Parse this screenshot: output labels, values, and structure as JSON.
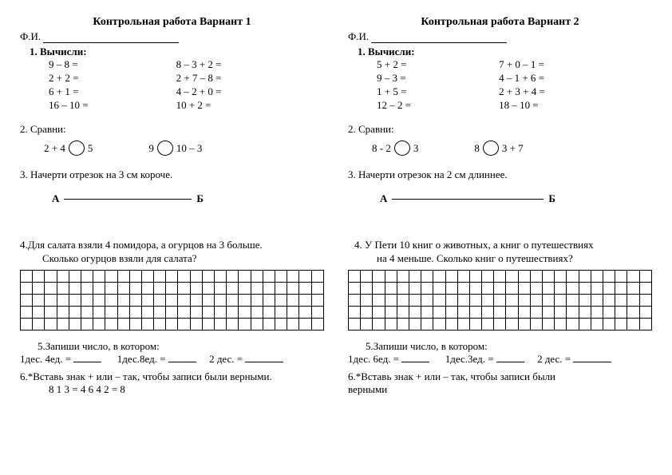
{
  "v1": {
    "title": "Контрольная работа  Вариант 1",
    "fi": "Ф.И.",
    "t1label": "1. Вычисли:",
    "col1": [
      "9 – 8 =",
      "2 + 2 =",
      "6 + 1 =",
      "16 – 10 ="
    ],
    "col2": [
      "8 – 3 + 2 =",
      "2 + 7 – 8 =",
      "4 – 2 + 0 =",
      "10 + 2 ="
    ],
    "t2label": "2. Сравни:",
    "cmp1_left": "2  + 4",
    "cmp1_right": "5",
    "cmp2_left": "9",
    "cmp2_right": "10  – 3",
    "t3label": "3. Начерти отрезок на 3 см короче.",
    "segA": "А",
    "segB": "Б",
    "t4text1": "4.Для салата взяли 4 помидора, а огурцов на 3 больше.",
    "t4text2": "Сколько огурцов взяли для салата?",
    "t5label": "5.Запиши число, в котором:",
    "t5a": "1дес. 4ед. = ",
    "t5b": "1дес.8ед. = ",
    "t5c": "2 дес. = ",
    "t6label": "6.*Вставь  знак + или – так, чтобы записи были верными.",
    "t6row": "8      1     3 = 4                       6      4     2 = 8"
  },
  "v2": {
    "title": "Контрольная работа  Вариант 2",
    "fi": "Ф.И.",
    "t1label": "1. Вычисли:",
    "col1": [
      "5 + 2 =",
      "9 – 3 =",
      "1 + 5 =",
      "12 – 2 ="
    ],
    "col2": [
      "7 + 0 – 1 =",
      "4 – 1 + 6 =",
      "2 + 3 + 4 =",
      "18 – 10 ="
    ],
    "t2label": "2. Сравни:",
    "cmp1_left": "8 - 2",
    "cmp1_right": "3",
    "cmp2_left": "8",
    "cmp2_right": "3  + 7",
    "t3label": "3. Начерти отрезок на 2 см длиннее.",
    "segA": "А",
    "segB": "Б",
    "t4text1": "4. У Пети 10 книг о животных, а книг о путешествиях",
    "t4text2": "на 4 меньше. Сколько книг о путешествиях?",
    "t5label": "5.Запиши число, в котором:",
    "t5a": "1дес. 6ед. = ",
    "t5b": "1дес.3ед. = ",
    "t5c": "2 дес. = ",
    "t6label": "6.*Вставь  знак + или – так, чтобы записи были",
    "t6row": "верными"
  },
  "grid": {
    "rows": 5,
    "cols": 25
  }
}
